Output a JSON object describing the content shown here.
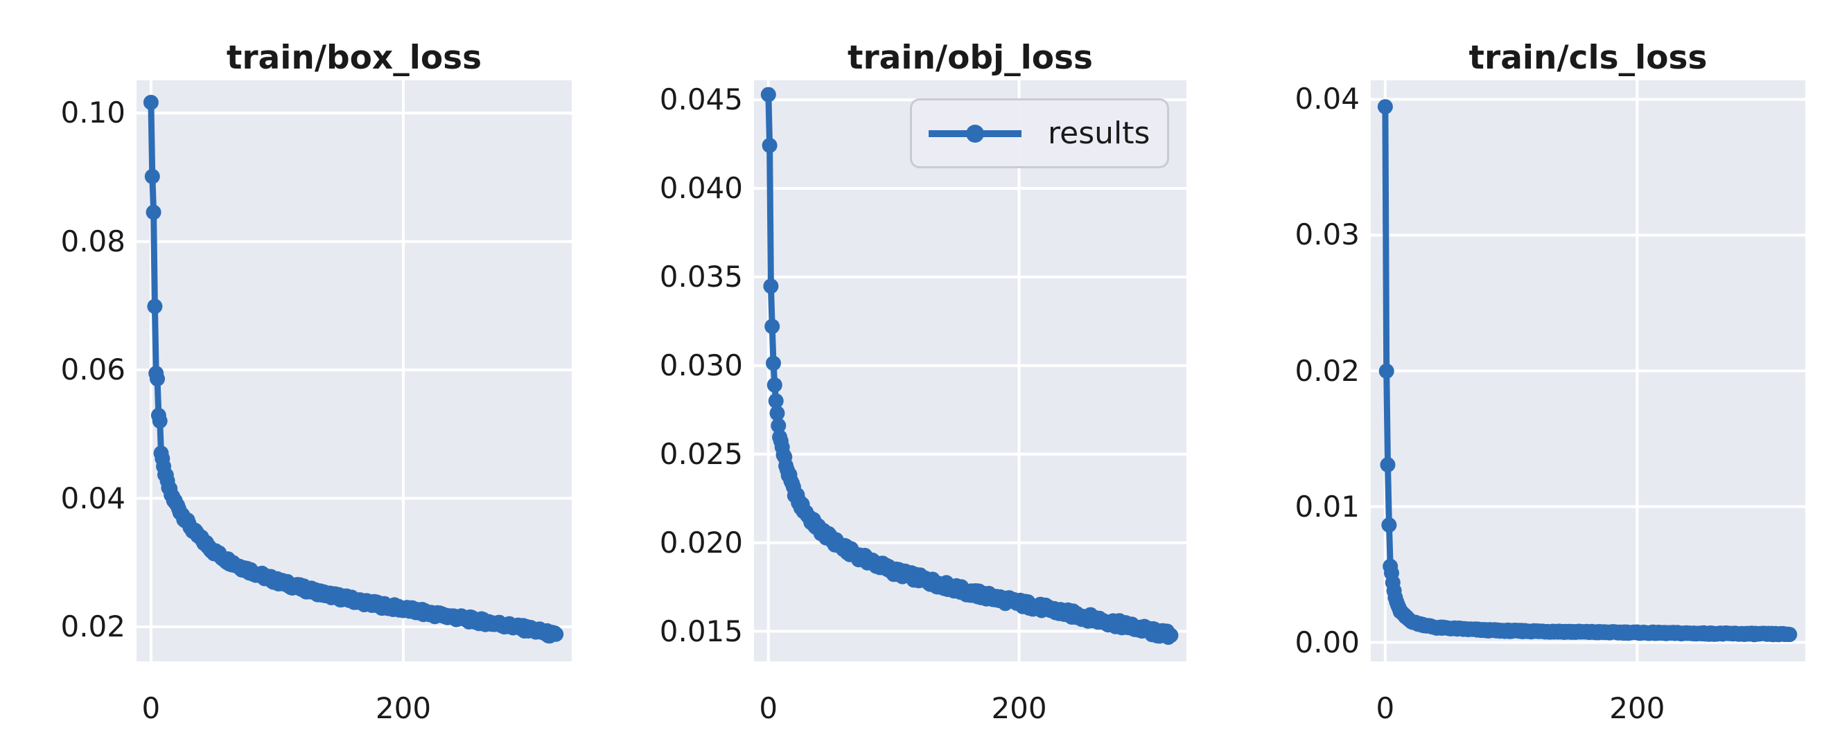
{
  "figure": {
    "background": "#ffffff",
    "text_color": "#1a1a1a"
  },
  "style": {
    "accent_color": "#2d6db6",
    "axes_background": "#e8eaf2",
    "gridline_color": "#ffffff",
    "legend_fill": "#ecedf4",
    "legend_border": "#c9cbd4"
  },
  "legend": {
    "label": "results",
    "position": "upper right of middle plot"
  },
  "chart_data": [
    {
      "type": "line",
      "title": "train/box_loss",
      "xlabel": "",
      "ylabel": "",
      "grid": true,
      "legend": false,
      "marker": "circle",
      "xlim": [
        -11.5,
        333.5
      ],
      "ylim": [
        0.0146,
        0.1051
      ],
      "xticks": [
        0,
        200
      ],
      "xtick_labels": [
        "0",
        "200"
      ],
      "yticks": [
        0.02,
        0.04,
        0.06,
        0.08,
        0.1
      ],
      "ytick_labels": [
        "0.02",
        "0.04",
        "0.06",
        "0.08",
        "0.10"
      ],
      "n_epochs": 322,
      "jitter": 0.00042,
      "series": [
        {
          "name": "results",
          "points": [
            [
              0,
              0.1013
            ],
            [
              1,
              0.0905
            ],
            [
              2,
              0.0845
            ],
            [
              3,
              0.07
            ],
            [
              4,
              0.0595
            ],
            [
              5,
              0.0585
            ],
            [
              6,
              0.0532
            ],
            [
              7,
              0.0522
            ],
            [
              8,
              0.047
            ],
            [
              9,
              0.0458
            ],
            [
              10,
              0.0447
            ],
            [
              12,
              0.0432
            ],
            [
              14,
              0.0417
            ],
            [
              16,
              0.0406
            ],
            [
              18,
              0.0398
            ],
            [
              20,
              0.0391
            ],
            [
              25,
              0.0374
            ],
            [
              30,
              0.0359
            ],
            [
              35,
              0.0346
            ],
            [
              40,
              0.0336
            ],
            [
              50,
              0.0317
            ],
            [
              60,
              0.0304
            ],
            [
              70,
              0.0294
            ],
            [
              80,
              0.0286
            ],
            [
              90,
              0.0278
            ],
            [
              100,
              0.0271
            ],
            [
              120,
              0.026
            ],
            [
              140,
              0.025
            ],
            [
              160,
              0.0242
            ],
            [
              180,
              0.0234
            ],
            [
              200,
              0.0228
            ],
            [
              220,
              0.0221
            ],
            [
              240,
              0.0215
            ],
            [
              260,
              0.0209
            ],
            [
              280,
              0.0203
            ],
            [
              300,
              0.0196
            ],
            [
              310,
              0.0192
            ],
            [
              321,
              0.0186
            ]
          ]
        }
      ]
    },
    {
      "type": "line",
      "title": "train/obj_loss",
      "xlabel": "",
      "ylabel": "",
      "grid": true,
      "legend": true,
      "marker": "circle",
      "xlim": [
        -11.5,
        333.5
      ],
      "ylim": [
        0.0133,
        0.0461
      ],
      "xticks": [
        0,
        200
      ],
      "xtick_labels": [
        "0",
        "200"
      ],
      "yticks": [
        0.015,
        0.02,
        0.025,
        0.03,
        0.035,
        0.04,
        0.045
      ],
      "ytick_labels": [
        "0.015",
        "0.020",
        "0.025",
        "0.030",
        "0.035",
        "0.040",
        "0.045"
      ],
      "n_epochs": 322,
      "jitter": 0.0002,
      "series": [
        {
          "name": "results",
          "points": [
            [
              0,
              0.0452
            ],
            [
              1,
              0.0424
            ],
            [
              2,
              0.0345
            ],
            [
              3,
              0.0323
            ],
            [
              4,
              0.03
            ],
            [
              5,
              0.0288
            ],
            [
              6,
              0.028
            ],
            [
              7,
              0.0273
            ],
            [
              8,
              0.0266
            ],
            [
              10,
              0.0257
            ],
            [
              12,
              0.025
            ],
            [
              14,
              0.0244
            ],
            [
              16,
              0.0239
            ],
            [
              18,
              0.0234
            ],
            [
              20,
              0.023
            ],
            [
              25,
              0.0222
            ],
            [
              30,
              0.0217
            ],
            [
              35,
              0.0212
            ],
            [
              40,
              0.0208
            ],
            [
              50,
              0.0202
            ],
            [
              60,
              0.0197
            ],
            [
              70,
              0.0193
            ],
            [
              80,
              0.019
            ],
            [
              90,
              0.0187
            ],
            [
              100,
              0.0184
            ],
            [
              120,
              0.018
            ],
            [
              140,
              0.0176
            ],
            [
              160,
              0.0172
            ],
            [
              180,
              0.0169
            ],
            [
              200,
              0.0166
            ],
            [
              220,
              0.0163
            ],
            [
              240,
              0.016
            ],
            [
              260,
              0.0157
            ],
            [
              280,
              0.0154
            ],
            [
              300,
              0.0151
            ],
            [
              310,
              0.0149
            ],
            [
              321,
              0.0148
            ]
          ]
        }
      ]
    },
    {
      "type": "line",
      "title": "train/cls_loss",
      "xlabel": "",
      "ylabel": "",
      "grid": true,
      "legend": false,
      "marker": "circle",
      "xlim": [
        -11.5,
        333.5
      ],
      "ylim": [
        -0.0014,
        0.0414
      ],
      "xticks": [
        0,
        200
      ],
      "xtick_labels": [
        "0",
        "200"
      ],
      "yticks": [
        0.0,
        0.01,
        0.02,
        0.03,
        0.04
      ],
      "ytick_labels": [
        "0.00",
        "0.01",
        "0.02",
        "0.03",
        "0.04"
      ],
      "n_epochs": 322,
      "jitter": 5e-05,
      "series": [
        {
          "name": "results",
          "points": [
            [
              0,
              0.0395
            ],
            [
              1,
              0.02
            ],
            [
              2,
              0.0131
            ],
            [
              3,
              0.0086
            ],
            [
              4,
              0.0056
            ],
            [
              5,
              0.0051
            ],
            [
              6,
              0.0044
            ],
            [
              7,
              0.0038
            ],
            [
              8,
              0.0033
            ],
            [
              10,
              0.0027
            ],
            [
              12,
              0.0023
            ],
            [
              14,
              0.0021
            ],
            [
              16,
              0.0019
            ],
            [
              20,
              0.0016
            ],
            [
              25,
              0.0014
            ],
            [
              30,
              0.0013
            ],
            [
              40,
              0.0011
            ],
            [
              60,
              0.001
            ],
            [
              80,
              0.0009
            ],
            [
              100,
              0.00085
            ],
            [
              150,
              0.00078
            ],
            [
              200,
              0.00072
            ],
            [
              250,
              0.00066
            ],
            [
              300,
              0.00062
            ],
            [
              321,
              0.0006
            ]
          ]
        }
      ]
    }
  ]
}
